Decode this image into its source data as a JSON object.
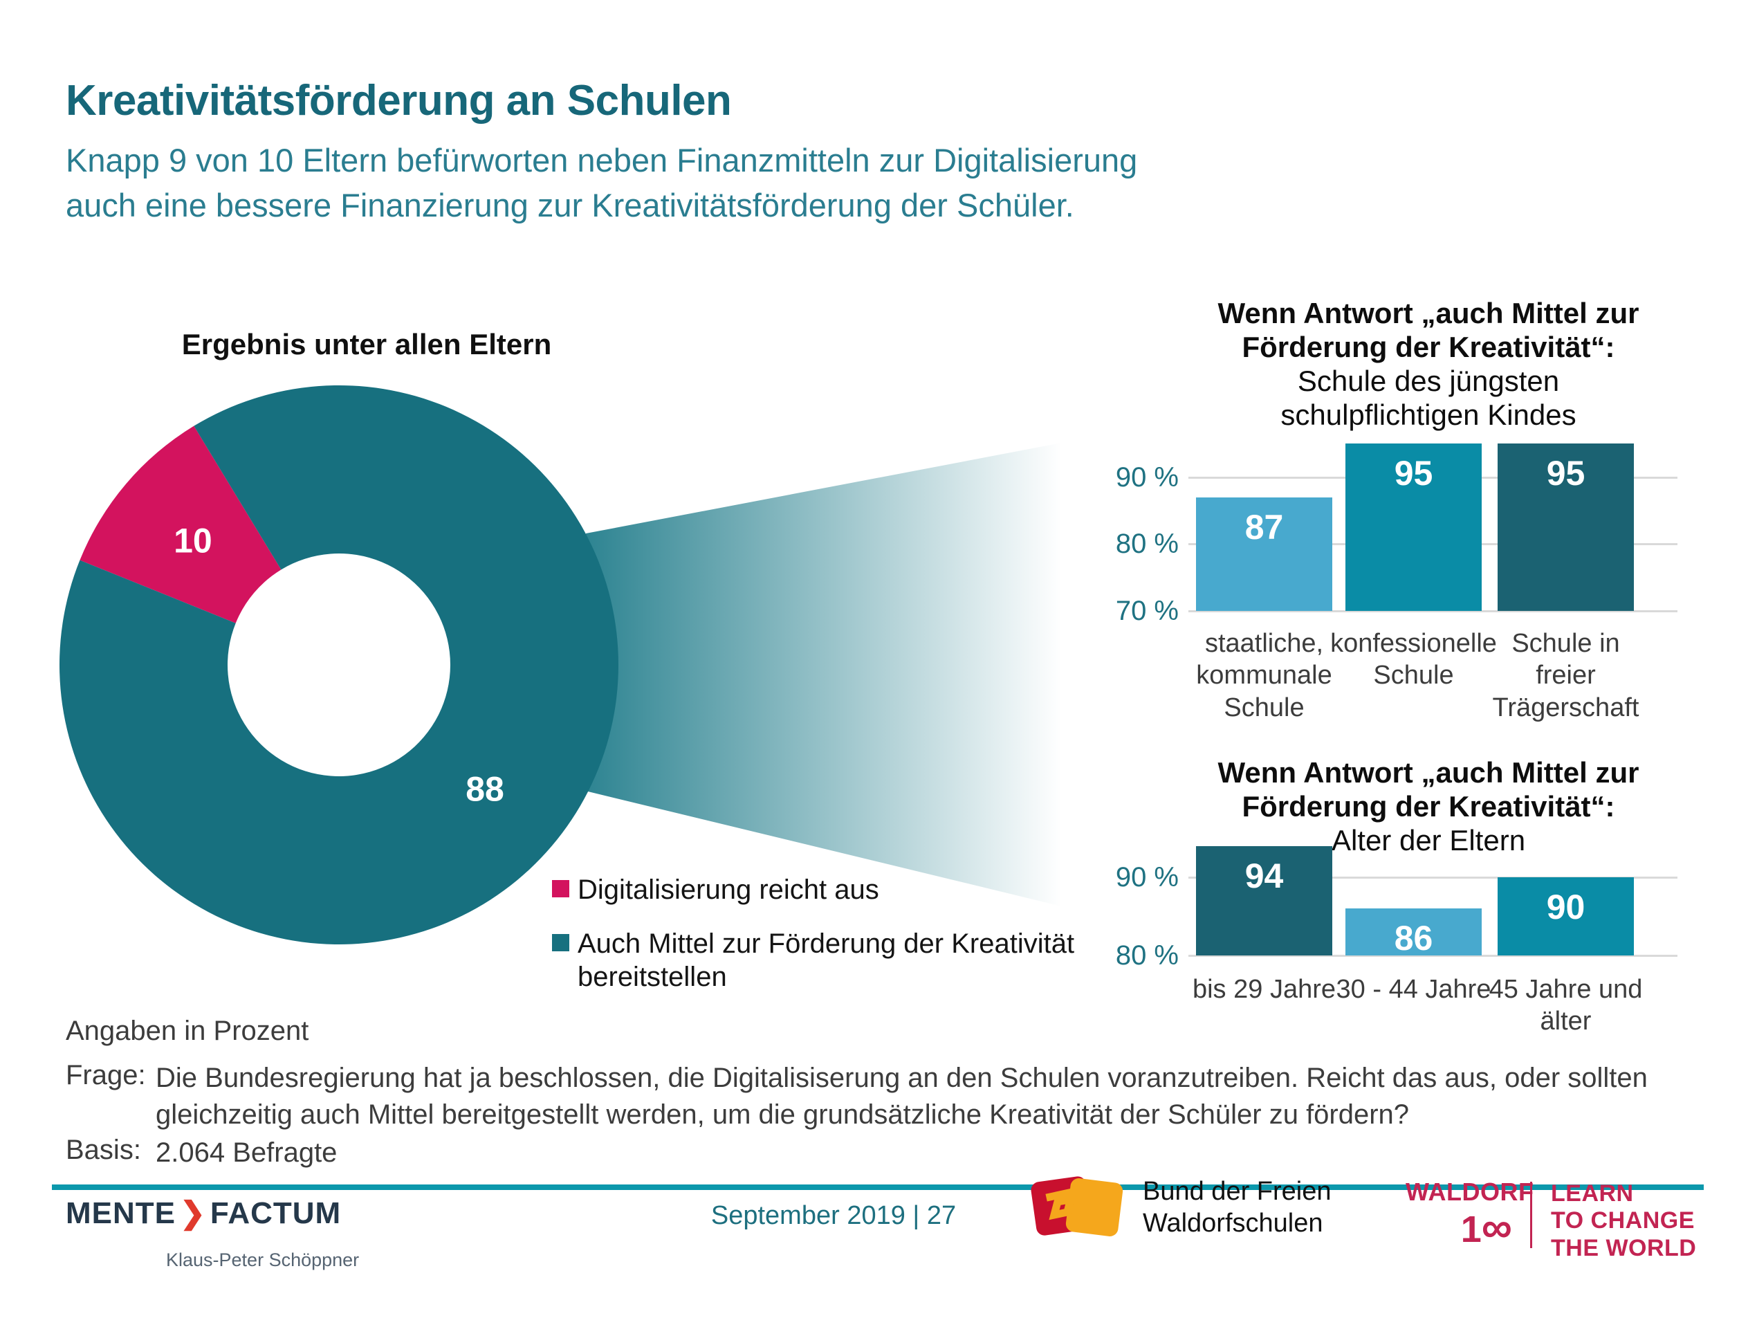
{
  "header": {
    "title": "Kreativitätsförderung an Schulen",
    "subtitle": "Knapp 9 von 10 Eltern befürworten neben Finanzmitteln zur Digitalisierung\nauch eine bessere Finanzierung zur Kreativitätsförderung der Schüler."
  },
  "chart_data": [
    {
      "id": "donut-all-parents",
      "type": "pie",
      "title": "Ergebnis unter allen Eltern",
      "inner_radius_ratio": 0.4,
      "slices": [
        {
          "label": "Digitalisierung reicht aus",
          "value": 10,
          "color": "#d3135e"
        },
        {
          "label": "Auch Mittel zur Förderung der Kreativität\nbereitstellen",
          "value": 88,
          "color": "#17707f"
        }
      ],
      "legend_position": "bottom-right",
      "units": "Prozent"
    },
    {
      "id": "school-of-youngest-child",
      "type": "bar",
      "title_lines": [
        {
          "text": "Wenn Antwort „auch Mittel zur",
          "bold": true
        },
        {
          "text": "Förderung der Kreativität“:",
          "bold": true
        },
        {
          "text": "Schule des jüngsten",
          "bold": false
        },
        {
          "text": "schulpflichtigen Kindes",
          "bold": false
        }
      ],
      "categories": [
        "staatliche,\nkommunale\nSchule",
        "konfessionelle\nSchule",
        "Schule in\nfreier\nTrägerschaft"
      ],
      "values": [
        87,
        95,
        95
      ],
      "bar_colors": [
        "#48a9ce",
        "#0a8ca6",
        "#1b6272"
      ],
      "ylim": [
        70,
        97
      ],
      "yticks": [
        90,
        80,
        70
      ],
      "ytick_suffix": " %",
      "grid": true
    },
    {
      "id": "age-of-parents",
      "type": "bar",
      "title_lines": [
        {
          "text": "Wenn Antwort „auch Mittel zur",
          "bold": true
        },
        {
          "text": "Förderung der Kreativität“:",
          "bold": true
        },
        {
          "text": "Alter der Eltern",
          "bold": false
        }
      ],
      "categories": [
        "bis 29 Jahre",
        "30 - 44 Jahre",
        "45 Jahre und\nälter"
      ],
      "values": [
        94,
        86,
        90
      ],
      "bar_colors": [
        "#1b6272",
        "#48a9ce",
        "#0a8ca6"
      ],
      "ylim": [
        80,
        94
      ],
      "yticks": [
        90,
        80
      ],
      "ytick_suffix": " %",
      "grid": true
    }
  ],
  "notes": {
    "angaben": "Angaben in Prozent",
    "frage_label": "Frage:",
    "frage_text": "Die Bundesregierung hat ja beschlossen, die Digitalisiserung an den Schulen voranzutreiben. Reicht das aus, oder sollten\ngleichzeitig auch Mittel bereitgestellt werden, um die grundsätzliche Kreativität der Schüler zu fördern?",
    "basis_label": "Basis:",
    "basis_text": "2.064 Befragte"
  },
  "footer": {
    "mente": {
      "word1": "MENTE",
      "chevron": "❯",
      "word2": "FACTUM",
      "person": "Klaus-Peter Schöppner"
    },
    "date_page": "September 2019 | 27",
    "waldorfschulen": {
      "line1": "Bund der Freien",
      "line2": "Waldorfschulen"
    },
    "waldorf100": {
      "brand": "WALDORF",
      "number": "1",
      "infinity": "∞",
      "tagline": "LEARN\nTO CHANGE\nTHE WORLD"
    }
  },
  "colors": {
    "title_teal": "#176779",
    "subtitle_teal": "#2a7d90",
    "donut_teal": "#17707f",
    "donut_pink": "#d3135e",
    "bar_light_blue": "#48a9ce",
    "bar_mid_teal": "#0a8ca6",
    "bar_dark_teal": "#1b6272",
    "axis_label_teal": "#1f7282",
    "gridline_gray": "#d9d9d9",
    "rule_teal": "#0c98ac",
    "mente_navy": "#25384a",
    "mente_red": "#e03a2d",
    "waldorf_crimson": "#c22452",
    "waldorf_red": "#c8102e",
    "waldorf_orange": "#f5a71c"
  }
}
